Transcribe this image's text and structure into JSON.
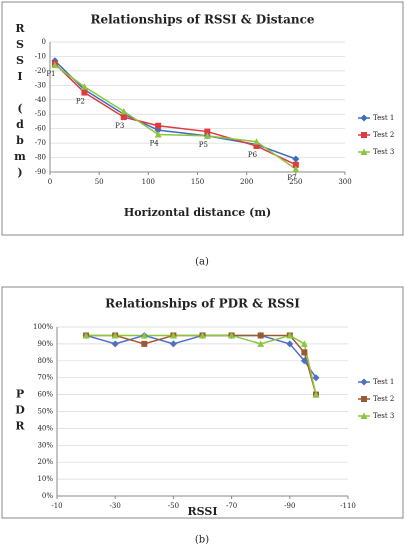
{
  "chart_data": [
    {
      "type": "line",
      "title": "Relationships of RSSI & Distance",
      "x_label": "Horizontal distance (m)",
      "y_label": "RSSI (dbm)",
      "caption": "(a)",
      "x": [
        5,
        35,
        75,
        110,
        160,
        210,
        250
      ],
      "point_labels": [
        "P1",
        "P2",
        "P3",
        "P4",
        "P5",
        "P6",
        "P7"
      ],
      "series": [
        {
          "name": "Test 1",
          "color": "#3a6fbf",
          "marker": "diamond",
          "values": [
            -13,
            -33,
            -50,
            -61,
            -65,
            -71,
            -81
          ]
        },
        {
          "name": "Test 2",
          "color": "#e0393e",
          "marker": "square",
          "values": [
            -15,
            -35,
            -52,
            -58,
            -62,
            -72,
            -85
          ]
        },
        {
          "name": "Test 3",
          "color": "#8cc63f",
          "marker": "triangle",
          "values": [
            -16,
            -31,
            -48,
            -64,
            -65,
            -69,
            -88
          ]
        }
      ],
      "xlim": [
        0,
        300
      ],
      "xticks": [
        0,
        50,
        100,
        150,
        200,
        250,
        300
      ],
      "ylim": [
        -90,
        0
      ],
      "yticks": [
        0,
        -10,
        -20,
        -30,
        -40,
        -50,
        -60,
        -70,
        -80,
        -90
      ],
      "grid": true,
      "legend": "right"
    },
    {
      "type": "line",
      "title": "Relationships of PDR & RSSI",
      "x_label": "RSSI",
      "y_label": "PDR",
      "caption": "(b)",
      "x": [
        -20,
        -30,
        -40,
        -50,
        -60,
        -70,
        -80,
        -90,
        -95,
        -99
      ],
      "series": [
        {
          "name": "Test 1",
          "color": "#4f6fc0",
          "marker": "diamond",
          "values": [
            95,
            90,
            95,
            90,
            95,
            95,
            95,
            90,
            80,
            70
          ]
        },
        {
          "name": "Test 2",
          "color": "#9c5a34",
          "marker": "square",
          "values": [
            95,
            95,
            90,
            95,
            95,
            95,
            95,
            95,
            85,
            60
          ]
        },
        {
          "name": "Test 3",
          "color": "#8cc63f",
          "marker": "triangle",
          "values": [
            95,
            95,
            95,
            95,
            95,
            95,
            90,
            95,
            90,
            60
          ]
        }
      ],
      "xlim": [
        -10,
        -110
      ],
      "xticks": [
        -10,
        -30,
        -50,
        -70,
        -90,
        -110
      ],
      "ylim": [
        0,
        100
      ],
      "yticks": [
        {
          "value": 0,
          "label": "0%"
        },
        {
          "value": 10,
          "label": "10%"
        },
        {
          "value": 20,
          "label": "20%"
        },
        {
          "value": 30,
          "label": "30%"
        },
        {
          "value": 40,
          "label": "40%"
        },
        {
          "value": 50,
          "label": "50%"
        },
        {
          "value": 60,
          "label": "60%"
        },
        {
          "value": 70,
          "label": "70%"
        },
        {
          "value": 80,
          "label": "80%"
        },
        {
          "value": 90,
          "label": "90%"
        },
        {
          "value": 100,
          "label": "100%"
        }
      ],
      "grid": true,
      "legend": "right"
    }
  ]
}
